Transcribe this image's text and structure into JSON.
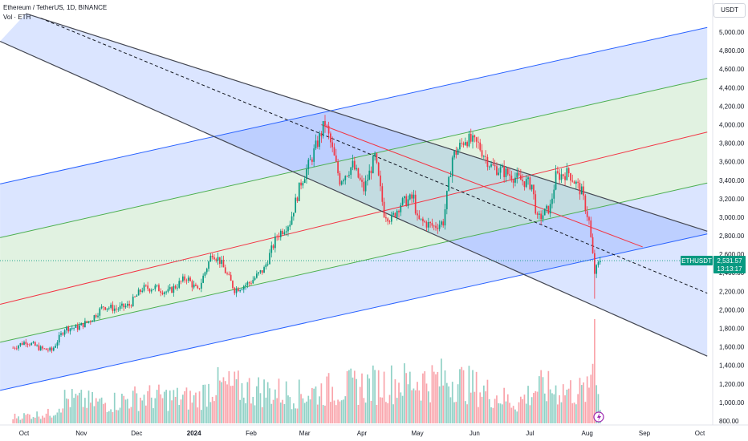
{
  "legend": {
    "symbol_title": "Ethereum / TetherUS, 1D, BINANCE",
    "volume_label": "Vol · ETH"
  },
  "currency_label": "USDT",
  "price_tag": {
    "symbol": "ETHUSDT",
    "price": "2,531.57",
    "countdown": "13:13:17",
    "color": "#089981"
  },
  "colors": {
    "up": "#089981",
    "down": "#f23645",
    "channel_fill_blue": "#2962ff",
    "channel_fill_green": "#4caf50",
    "median": "#f23645"
  },
  "chart_data": {
    "type": "candlestick",
    "title": "Ethereum / TetherUS, 1D, BINANCE",
    "ylim": [
      700,
      5200
    ],
    "y_ticks": [
      800,
      1000,
      1200,
      1400,
      1600,
      1800,
      2000,
      2200,
      2400,
      2600,
      2800,
      3000,
      3200,
      3400,
      3600,
      3800,
      4000,
      4200,
      4400,
      4600,
      4800,
      5000
    ],
    "y_tick_labels": [
      "800.00",
      "1,000.00",
      "1,200.00",
      "1,400.00",
      "1,600.00",
      "1,800.00",
      "2,000.00",
      "2,200.00",
      "2,400.00",
      "2,600.00",
      "2,800.00",
      "3,000.00",
      "3,200.00",
      "3,400.00",
      "3,600.00",
      "3,800.00",
      "4,000.00",
      "4,200.00",
      "4,400.00",
      "4,600.00",
      "4,800.00",
      "5,000.00"
    ],
    "x_ticks": [
      "Oct",
      "Nov",
      "Dec",
      "2024",
      "Feb",
      "Mar",
      "Apr",
      "May",
      "Jun",
      "Jul",
      "Aug",
      "Sep",
      "Oct"
    ],
    "x_tick_dates": [
      "2023-10-01",
      "2023-11-01",
      "2023-12-01",
      "2024-01-01",
      "2024-02-01",
      "2024-03-01",
      "2024-04-01",
      "2024-05-01",
      "2024-06-01",
      "2024-07-01",
      "2024-08-01",
      "2024-09-01",
      "2024-10-01"
    ],
    "price_anchors": [
      [
        "2023-09-25",
        1590
      ],
      [
        "2023-10-02",
        1660
      ],
      [
        "2023-10-10",
        1580
      ],
      [
        "2023-10-16",
        1560
      ],
      [
        "2023-10-23",
        1800
      ],
      [
        "2023-10-30",
        1810
      ],
      [
        "2023-11-06",
        1890
      ],
      [
        "2023-11-13",
        2040
      ],
      [
        "2023-11-20",
        2010
      ],
      [
        "2023-11-27",
        2050
      ],
      [
        "2023-12-04",
        2230
      ],
      [
        "2023-12-11",
        2240
      ],
      [
        "2023-12-18",
        2190
      ],
      [
        "2023-12-28",
        2350
      ],
      [
        "2024-01-03",
        2200
      ],
      [
        "2024-01-11",
        2620
      ],
      [
        "2024-01-15",
        2530
      ],
      [
        "2024-01-23",
        2220
      ],
      [
        "2024-01-31",
        2290
      ],
      [
        "2024-02-08",
        2440
      ],
      [
        "2024-02-15",
        2800
      ],
      [
        "2024-02-22",
        2950
      ],
      [
        "2024-02-28",
        3380
      ],
      [
        "2024-03-04",
        3600
      ],
      [
        "2024-03-12",
        4020
      ],
      [
        "2024-03-15",
        3800
      ],
      [
        "2024-03-20",
        3400
      ],
      [
        "2024-03-27",
        3560
      ],
      [
        "2024-04-02",
        3300
      ],
      [
        "2024-04-08",
        3650
      ],
      [
        "2024-04-13",
        3050
      ],
      [
        "2024-04-17",
        2980
      ],
      [
        "2024-04-22",
        3150
      ],
      [
        "2024-04-29",
        3210
      ],
      [
        "2024-05-01",
        2970
      ],
      [
        "2024-05-10",
        2900
      ],
      [
        "2024-05-15",
        2950
      ],
      [
        "2024-05-20",
        3650
      ],
      [
        "2024-05-27",
        3850
      ],
      [
        "2024-06-03",
        3780
      ],
      [
        "2024-06-10",
        3550
      ],
      [
        "2024-06-18",
        3480
      ],
      [
        "2024-06-24",
        3420
      ],
      [
        "2024-07-02",
        3350
      ],
      [
        "2024-07-05",
        2970
      ],
      [
        "2024-07-12",
        3110
      ],
      [
        "2024-07-15",
        3440
      ],
      [
        "2024-07-22",
        3480
      ],
      [
        "2024-07-29",
        3270
      ],
      [
        "2024-08-02",
        2950
      ],
      [
        "2024-08-05",
        2400
      ],
      [
        "2024-08-08",
        2531.57
      ]
    ],
    "crash_low": 2120,
    "volume_scale_max": 400,
    "volume_anchors": [
      [
        "2023-09-25",
        30
      ],
      [
        "2023-10-16",
        45
      ],
      [
        "2023-10-23",
        110
      ],
      [
        "2023-11-13",
        90
      ],
      [
        "2023-12-04",
        120
      ],
      [
        "2024-01-03",
        110
      ],
      [
        "2024-01-11",
        170
      ],
      [
        "2024-02-28",
        130
      ],
      [
        "2024-03-12",
        150
      ],
      [
        "2024-04-13",
        180
      ],
      [
        "2024-05-20",
        200
      ],
      [
        "2024-06-24",
        90
      ],
      [
        "2024-07-05",
        160
      ],
      [
        "2024-08-02",
        140
      ],
      [
        "2024-08-05",
        400
      ],
      [
        "2024-08-08",
        60
      ]
    ],
    "annotations": {
      "ascending_channel": {
        "outer_upper": [
          [
            "2023-09-18",
            3360
          ],
          [
            "2024-10-05",
            5050
          ]
        ],
        "inner_upper": [
          [
            "2023-09-18",
            2780
          ],
          [
            "2024-10-05",
            4500
          ]
        ],
        "median": [
          [
            "2023-09-18",
            2060
          ],
          [
            "2024-10-05",
            3920
          ]
        ],
        "inner_lower": [
          [
            "2023-09-18",
            1650
          ],
          [
            "2024-10-05",
            3370
          ]
        ],
        "outer_lower": [
          [
            "2023-09-18",
            1130
          ],
          [
            "2024-10-05",
            2820
          ]
        ]
      },
      "descending_channel": {
        "upper": [
          [
            "2023-10-02",
            5200
          ],
          [
            "2024-10-05",
            2850
          ]
        ],
        "median_dashed": [
          [
            "2023-10-10",
            5150
          ],
          [
            "2024-10-05",
            2180
          ]
        ],
        "lower": [
          [
            "2023-09-18",
            4900
          ],
          [
            "2024-10-05",
            1500
          ]
        ],
        "red_median": [
          [
            "2024-03-10",
            4000
          ],
          [
            "2024-08-31",
            2680
          ]
        ]
      }
    }
  }
}
